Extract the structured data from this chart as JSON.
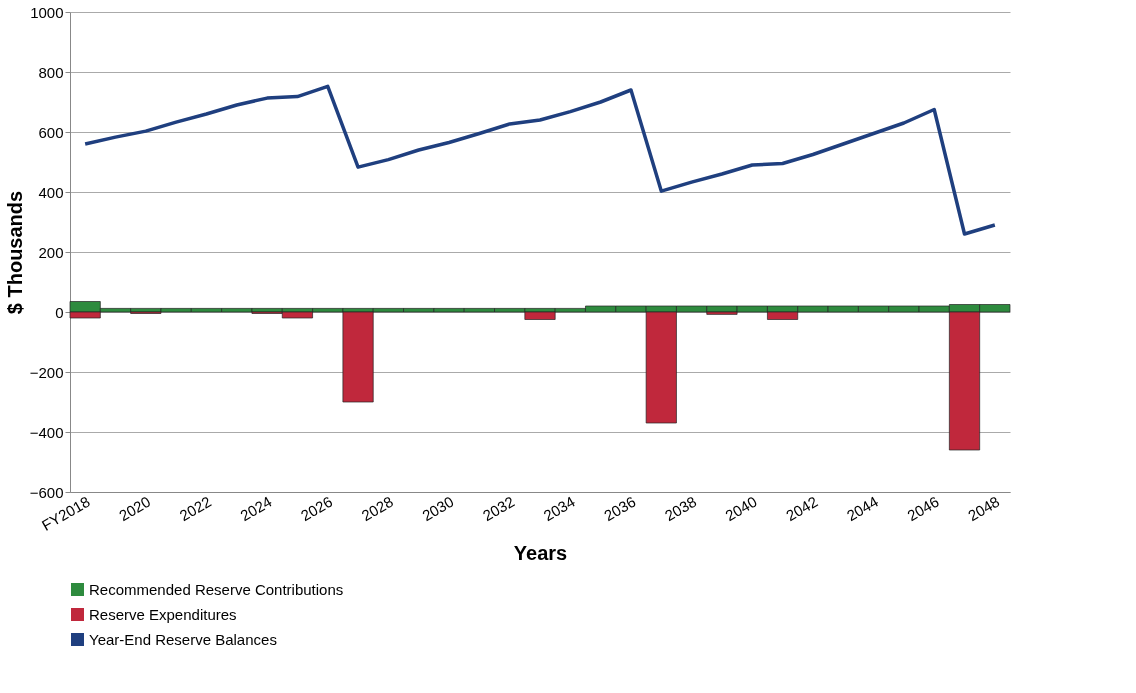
{
  "chart_data": {
    "type": "bar",
    "xlabel": "Years",
    "ylabel": "$ Thousands",
    "categories": [
      "FY2018",
      null,
      "2020",
      null,
      "2022",
      null,
      "2024",
      null,
      "2026",
      null,
      "2028",
      null,
      "2030",
      null,
      "2032",
      null,
      "2034",
      null,
      "2036",
      null,
      "2038",
      null,
      "2040",
      null,
      "2042",
      null,
      "2044",
      null,
      "2046",
      null,
      "2048"
    ],
    "series": [
      {
        "name": "Recommended Reserve Contributions",
        "color": "#2e8b3e",
        "values": [
          35,
          12,
          12,
          12,
          12,
          12,
          12,
          12,
          12,
          12,
          12,
          12,
          12,
          12,
          12,
          12,
          12,
          20,
          20,
          20,
          20,
          20,
          20,
          20,
          20,
          20,
          20,
          20,
          20,
          25,
          25
        ]
      },
      {
        "name": "Reserve Expenditures",
        "color": "#c0283c",
        "values": [
          -20,
          null,
          -5,
          null,
          null,
          null,
          -5,
          -20,
          null,
          -300,
          null,
          null,
          null,
          null,
          null,
          -25,
          null,
          null,
          null,
          -370,
          null,
          -8,
          null,
          -25,
          null,
          null,
          null,
          null,
          null,
          -460,
          null
        ]
      },
      {
        "name": "Year-End Reserve Balances",
        "type": "line",
        "color": "#1f3f7f",
        "values": [
          560,
          583,
          603,
          633,
          660,
          690,
          713,
          718,
          752,
          483,
          508,
          540,
          565,
          595,
          627,
          640,
          668,
          700,
          740,
          403,
          433,
          460,
          490,
          495,
          525,
          560,
          595,
          630,
          675,
          260,
          290
        ]
      }
    ],
    "ylim": [
      -600,
      1000
    ],
    "yticks": [
      -600,
      -400,
      -200,
      0,
      200,
      400,
      600,
      800,
      1000
    ],
    "grid": "y",
    "legend": "bottom"
  }
}
